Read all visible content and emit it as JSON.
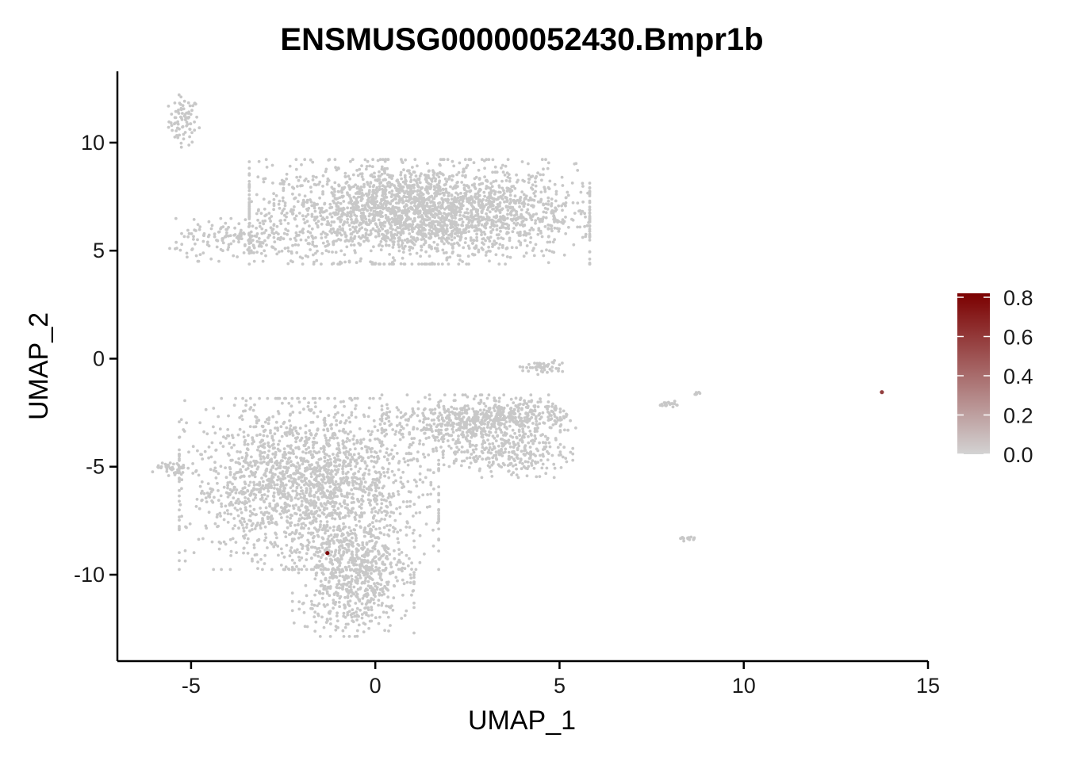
{
  "chart_data": {
    "type": "scatter",
    "title": "ENSMUSG00000052430.Bmpr1b",
    "xlabel": "UMAP_1",
    "ylabel": "UMAP_2",
    "xlim": [
      -7,
      15
    ],
    "ylim": [
      -14,
      13.3
    ],
    "x_ticks": [
      -5,
      0,
      5,
      10,
      15
    ],
    "y_ticks": [
      10,
      5,
      0,
      -5,
      -10
    ],
    "grid": false,
    "point_color_low": "#c8c8c8",
    "point_color_high": "#7b0000",
    "color_scale": {
      "min": 0.0,
      "max": 0.8,
      "ticks": [
        "0.8",
        "0.6",
        "0.4",
        "0.2",
        "0.0"
      ],
      "tick_values": [
        0.8,
        0.6,
        0.4,
        0.2,
        0.0
      ],
      "position": "right"
    },
    "clusters": [
      {
        "cx": -5.2,
        "cy": 11.0,
        "sx": 0.2,
        "sy": 0.55,
        "n": 80
      },
      {
        "cx": 1.2,
        "cy": 6.8,
        "sx": 2.1,
        "sy": 1.1,
        "n": 2600
      },
      {
        "cx": -3.6,
        "cy": 5.5,
        "sx": 0.9,
        "sy": 0.45,
        "n": 180
      },
      {
        "cx": -1.8,
        "cy": -5.8,
        "sx": 1.6,
        "sy": 1.8,
        "n": 2000
      },
      {
        "cx": -0.6,
        "cy": -10.0,
        "sx": 0.75,
        "sy": 1.3,
        "n": 700
      },
      {
        "cx": 2.6,
        "cy": -3.0,
        "sx": 1.1,
        "sy": 0.6,
        "n": 500
      },
      {
        "cx": 3.6,
        "cy": -4.4,
        "sx": 0.8,
        "sy": 0.5,
        "n": 250
      },
      {
        "cx": 3.9,
        "cy": -2.6,
        "sx": 0.7,
        "sy": 0.35,
        "n": 200
      },
      {
        "cx": 4.5,
        "cy": -0.4,
        "sx": 0.3,
        "sy": 0.15,
        "n": 50
      },
      {
        "cx": 8.0,
        "cy": -2.1,
        "sx": 0.15,
        "sy": 0.06,
        "n": 20
      },
      {
        "cx": 8.7,
        "cy": -1.6,
        "sx": 0.08,
        "sy": 0.05,
        "n": 8
      },
      {
        "cx": 8.5,
        "cy": -8.35,
        "sx": 0.1,
        "sy": 0.05,
        "n": 14
      },
      {
        "cx": -5.5,
        "cy": -5.1,
        "sx": 0.25,
        "sy": 0.15,
        "n": 40
      }
    ],
    "expressing_points": [
      {
        "x": -1.3,
        "y": -9.0,
        "value": 0.8
      },
      {
        "x": 13.75,
        "y": -1.55,
        "value": 0.55
      }
    ]
  }
}
